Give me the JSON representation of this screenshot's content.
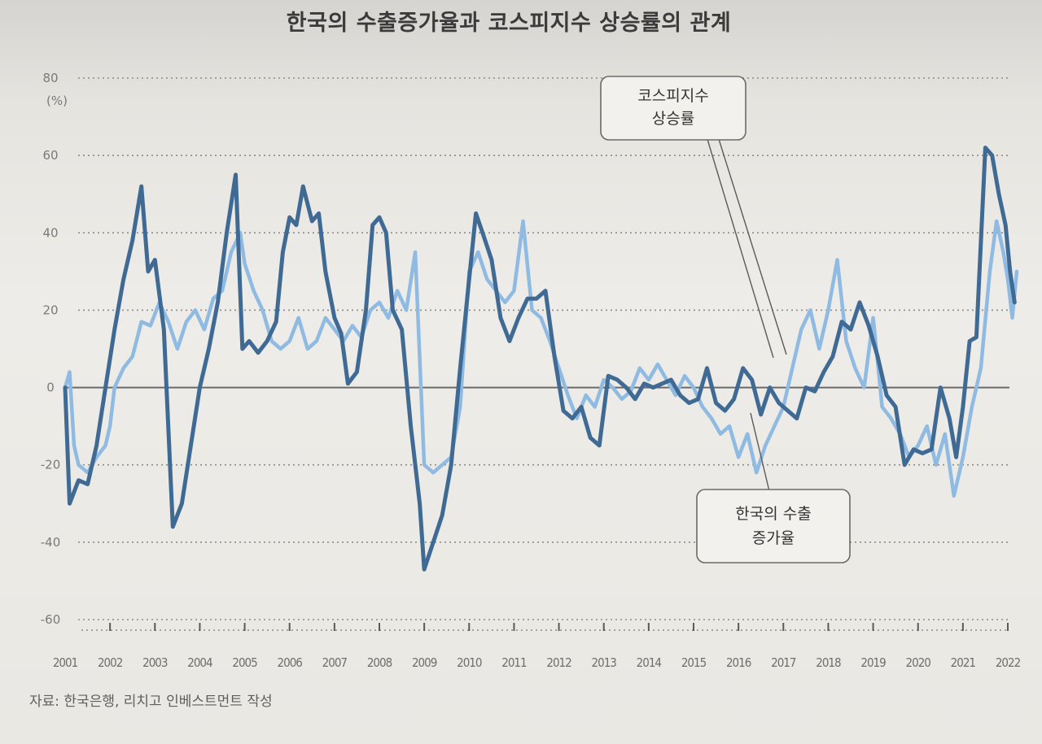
{
  "title": "한국의 수출증가율과 코스피지수 상승률의 관계",
  "source": "자료: 한국은행, 리치고 인베스트먼트 작성",
  "chart_data": {
    "type": "line",
    "title": "한국의 수출증가율과 코스피지수 상승률의 관계",
    "y_unit_label": "(%)",
    "ylim": [
      -60,
      80
    ],
    "y_ticks": [
      80,
      60,
      40,
      20,
      0,
      -20,
      -40,
      -60
    ],
    "xlim": [
      2001,
      2022
    ],
    "x_ticks": [
      "2001",
      "2002",
      "2003",
      "2004",
      "2005",
      "2006",
      "2007",
      "2008",
      "2009",
      "2010",
      "2011",
      "2012",
      "2013",
      "2014",
      "2015",
      "2016",
      "2017",
      "2018",
      "2019",
      "2020",
      "2021",
      "2022"
    ],
    "grid": "horizontal dotted",
    "series": [
      {
        "name": "코스피지수 상승률",
        "label_lines": [
          "코스피지수",
          "상승률"
        ],
        "color": "#3f6a94",
        "points": [
          [
            2001.0,
            0
          ],
          [
            2001.1,
            -30
          ],
          [
            2001.3,
            -24
          ],
          [
            2001.5,
            -25
          ],
          [
            2001.7,
            -15
          ],
          [
            2001.9,
            0
          ],
          [
            2002.1,
            15
          ],
          [
            2002.3,
            28
          ],
          [
            2002.5,
            38
          ],
          [
            2002.7,
            52
          ],
          [
            2002.85,
            30
          ],
          [
            2003.0,
            33
          ],
          [
            2003.2,
            15
          ],
          [
            2003.4,
            -36
          ],
          [
            2003.6,
            -30
          ],
          [
            2003.8,
            -15
          ],
          [
            2004.0,
            0
          ],
          [
            2004.2,
            10
          ],
          [
            2004.4,
            22
          ],
          [
            2004.6,
            40
          ],
          [
            2004.8,
            55
          ],
          [
            2004.95,
            10
          ],
          [
            2005.1,
            12
          ],
          [
            2005.3,
            9
          ],
          [
            2005.5,
            12
          ],
          [
            2005.7,
            17
          ],
          [
            2005.85,
            35
          ],
          [
            2006.0,
            44
          ],
          [
            2006.15,
            42
          ],
          [
            2006.3,
            52
          ],
          [
            2006.5,
            43
          ],
          [
            2006.65,
            45
          ],
          [
            2006.8,
            30
          ],
          [
            2007.0,
            18
          ],
          [
            2007.15,
            14
          ],
          [
            2007.3,
            1
          ],
          [
            2007.5,
            4
          ],
          [
            2007.7,
            20
          ],
          [
            2007.85,
            42
          ],
          [
            2008.0,
            44
          ],
          [
            2008.15,
            40
          ],
          [
            2008.3,
            20
          ],
          [
            2008.5,
            15
          ],
          [
            2008.7,
            -10
          ],
          [
            2008.9,
            -30
          ],
          [
            2009.0,
            -47
          ],
          [
            2009.2,
            -40
          ],
          [
            2009.4,
            -33
          ],
          [
            2009.6,
            -20
          ],
          [
            2009.8,
            5
          ],
          [
            2010.0,
            28
          ],
          [
            2010.15,
            45
          ],
          [
            2010.3,
            40
          ],
          [
            2010.5,
            33
          ],
          [
            2010.7,
            18
          ],
          [
            2010.9,
            12
          ],
          [
            2011.1,
            18
          ],
          [
            2011.3,
            23
          ],
          [
            2011.5,
            23
          ],
          [
            2011.7,
            25
          ],
          [
            2011.9,
            8
          ],
          [
            2012.1,
            -6
          ],
          [
            2012.3,
            -8
          ],
          [
            2012.5,
            -5
          ],
          [
            2012.7,
            -13
          ],
          [
            2012.9,
            -15
          ],
          [
            2013.1,
            3
          ],
          [
            2013.3,
            2
          ],
          [
            2013.5,
            0
          ],
          [
            2013.7,
            -3
          ],
          [
            2013.9,
            1
          ],
          [
            2014.1,
            0
          ],
          [
            2014.3,
            1
          ],
          [
            2014.5,
            2
          ],
          [
            2014.7,
            -2
          ],
          [
            2014.9,
            -4
          ],
          [
            2015.1,
            -3
          ],
          [
            2015.3,
            5
          ],
          [
            2015.5,
            -4
          ],
          [
            2015.7,
            -6
          ],
          [
            2015.9,
            -3
          ],
          [
            2016.1,
            5
          ],
          [
            2016.3,
            2
          ],
          [
            2016.5,
            -7
          ],
          [
            2016.7,
            0
          ],
          [
            2016.9,
            -4
          ],
          [
            2017.1,
            -6
          ],
          [
            2017.3,
            -8
          ],
          [
            2017.5,
            0
          ],
          [
            2017.7,
            -1
          ],
          [
            2017.9,
            4
          ],
          [
            2018.1,
            8
          ],
          [
            2018.3,
            17
          ],
          [
            2018.5,
            15
          ],
          [
            2018.7,
            22
          ],
          [
            2018.9,
            16
          ],
          [
            2019.1,
            8
          ],
          [
            2019.3,
            -2
          ],
          [
            2019.5,
            -5
          ],
          [
            2019.7,
            -20
          ],
          [
            2019.9,
            -16
          ],
          [
            2020.1,
            -17
          ],
          [
            2020.3,
            -16
          ],
          [
            2020.5,
            0
          ],
          [
            2020.7,
            -8
          ],
          [
            2020.85,
            -18
          ],
          [
            2021.0,
            -5
          ],
          [
            2021.15,
            12
          ],
          [
            2021.3,
            13
          ],
          [
            2021.5,
            62
          ],
          [
            2021.65,
            60
          ],
          [
            2021.8,
            50
          ],
          [
            2021.95,
            42
          ],
          [
            2022.05,
            30
          ],
          [
            2022.15,
            22
          ]
        ]
      },
      {
        "name": "한국의 수출 증가율",
        "label_lines": [
          "한국의 수출",
          "증가율"
        ],
        "color": "#8fbbe3",
        "points": [
          [
            2001.0,
            0
          ],
          [
            2001.1,
            4
          ],
          [
            2001.2,
            -15
          ],
          [
            2001.3,
            -20
          ],
          [
            2001.5,
            -22
          ],
          [
            2001.7,
            -18
          ],
          [
            2001.9,
            -15
          ],
          [
            2002.0,
            -10
          ],
          [
            2002.1,
            0
          ],
          [
            2002.3,
            5
          ],
          [
            2002.5,
            8
          ],
          [
            2002.7,
            17
          ],
          [
            2002.9,
            16
          ],
          [
            2003.1,
            22
          ],
          [
            2003.3,
            17
          ],
          [
            2003.5,
            10
          ],
          [
            2003.7,
            17
          ],
          [
            2003.9,
            20
          ],
          [
            2004.1,
            15
          ],
          [
            2004.3,
            23
          ],
          [
            2004.5,
            25
          ],
          [
            2004.7,
            35
          ],
          [
            2004.9,
            40
          ],
          [
            2005.0,
            32
          ],
          [
            2005.2,
            25
          ],
          [
            2005.4,
            20
          ],
          [
            2005.6,
            12
          ],
          [
            2005.8,
            10
          ],
          [
            2006.0,
            12
          ],
          [
            2006.2,
            18
          ],
          [
            2006.4,
            10
          ],
          [
            2006.6,
            12
          ],
          [
            2006.8,
            18
          ],
          [
            2007.0,
            15
          ],
          [
            2007.2,
            12
          ],
          [
            2007.4,
            16
          ],
          [
            2007.6,
            13
          ],
          [
            2007.8,
            20
          ],
          [
            2008.0,
            22
          ],
          [
            2008.2,
            18
          ],
          [
            2008.4,
            25
          ],
          [
            2008.6,
            20
          ],
          [
            2008.8,
            35
          ],
          [
            2009.0,
            -20
          ],
          [
            2009.2,
            -22
          ],
          [
            2009.4,
            -20
          ],
          [
            2009.6,
            -18
          ],
          [
            2009.8,
            -5
          ],
          [
            2010.0,
            30
          ],
          [
            2010.2,
            35
          ],
          [
            2010.4,
            28
          ],
          [
            2010.6,
            25
          ],
          [
            2010.8,
            22
          ],
          [
            2011.0,
            25
          ],
          [
            2011.2,
            43
          ],
          [
            2011.4,
            20
          ],
          [
            2011.6,
            18
          ],
          [
            2011.8,
            12
          ],
          [
            2012.0,
            5
          ],
          [
            2012.2,
            -2
          ],
          [
            2012.4,
            -8
          ],
          [
            2012.6,
            -2
          ],
          [
            2012.8,
            -5
          ],
          [
            2013.0,
            2
          ],
          [
            2013.2,
            0
          ],
          [
            2013.4,
            -3
          ],
          [
            2013.6,
            -1
          ],
          [
            2013.8,
            5
          ],
          [
            2014.0,
            2
          ],
          [
            2014.2,
            6
          ],
          [
            2014.4,
            2
          ],
          [
            2014.6,
            -2
          ],
          [
            2014.8,
            3
          ],
          [
            2015.0,
            0
          ],
          [
            2015.2,
            -5
          ],
          [
            2015.4,
            -8
          ],
          [
            2015.6,
            -12
          ],
          [
            2015.8,
            -10
          ],
          [
            2016.0,
            -18
          ],
          [
            2016.2,
            -12
          ],
          [
            2016.4,
            -22
          ],
          [
            2016.6,
            -15
          ],
          [
            2016.8,
            -10
          ],
          [
            2017.0,
            -5
          ],
          [
            2017.2,
            5
          ],
          [
            2017.4,
            15
          ],
          [
            2017.6,
            20
          ],
          [
            2017.8,
            10
          ],
          [
            2018.0,
            20
          ],
          [
            2018.2,
            33
          ],
          [
            2018.4,
            12
          ],
          [
            2018.6,
            5
          ],
          [
            2018.8,
            0
          ],
          [
            2019.0,
            18
          ],
          [
            2019.2,
            -5
          ],
          [
            2019.4,
            -8
          ],
          [
            2019.6,
            -12
          ],
          [
            2019.8,
            -18
          ],
          [
            2020.0,
            -15
          ],
          [
            2020.2,
            -10
          ],
          [
            2020.4,
            -20
          ],
          [
            2020.6,
            -12
          ],
          [
            2020.8,
            -28
          ],
          [
            2021.0,
            -18
          ],
          [
            2021.2,
            -5
          ],
          [
            2021.4,
            5
          ],
          [
            2021.6,
            30
          ],
          [
            2021.75,
            43
          ],
          [
            2021.9,
            35
          ],
          [
            2022.0,
            28
          ],
          [
            2022.1,
            18
          ],
          [
            2022.2,
            30
          ]
        ]
      }
    ]
  }
}
